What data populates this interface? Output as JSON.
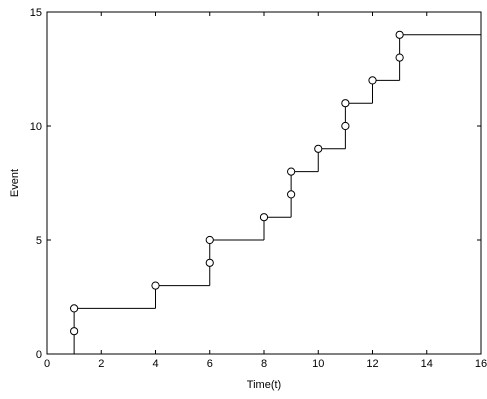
{
  "chart_data": {
    "type": "line",
    "subtype": "step",
    "title": "",
    "xlabel": "Time(t)",
    "ylabel": "Event",
    "xlim": [
      0,
      16
    ],
    "ylim": [
      0,
      15
    ],
    "xticks": [
      0,
      2,
      4,
      6,
      8,
      10,
      12,
      14,
      16
    ],
    "yticks": [
      0,
      5,
      10,
      15
    ],
    "grid": false,
    "series": [
      {
        "line_color": "#000000",
        "marker": "open-circle",
        "x": [
          1,
          1,
          4,
          6,
          6,
          8,
          9,
          9,
          10,
          11,
          11,
          12,
          13,
          13
        ],
        "y": [
          1,
          2,
          3,
          4,
          5,
          6,
          7,
          8,
          9,
          10,
          11,
          12,
          13,
          14
        ],
        "step_end_x": 16
      }
    ]
  }
}
